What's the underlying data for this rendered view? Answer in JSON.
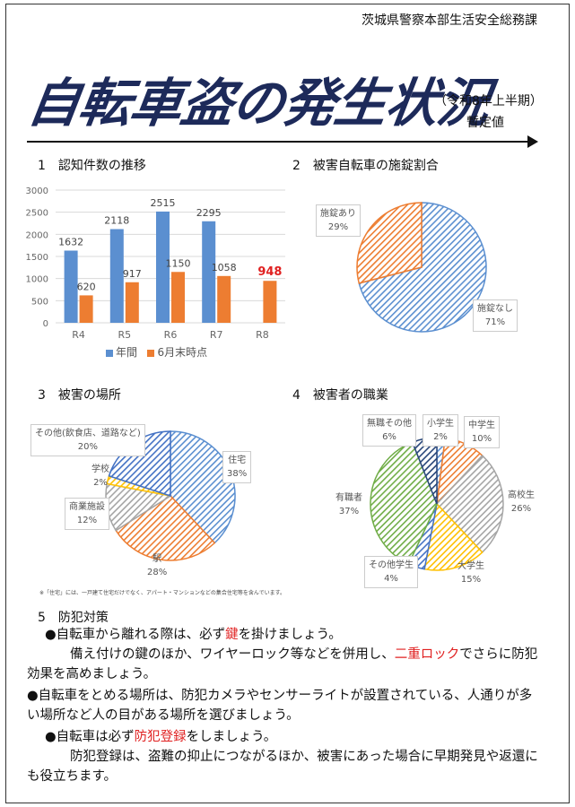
{
  "header": {
    "department": "茨城県警察本部生活安全総務課",
    "title": "自転車盗の発生状況",
    "period": "（令和8年上半期）",
    "provisional": "暫定値"
  },
  "sections": {
    "s1": "1　認知件数の推移",
    "s2": "2　被害自転車の施錠割合",
    "s3": "3　被害の場所",
    "s4": "4　被害者の職業",
    "s5": "5　防犯対策"
  },
  "bar_legend": {
    "annual": "年間",
    "june": "6月末時点"
  },
  "place_note": "※「住宅」には、一戸建て住宅だけでなく、アパート・マンションなどの集合住宅等を含んでいます。",
  "advice": {
    "p1_a": "●自転車から離れる際は、必ず",
    "p1_b": "鍵",
    "p1_c": "を掛けましょう。",
    "p2_a": "備え付けの鍵のほか、ワイヤーロック等などを併用し、",
    "p2_b": "二重ロック",
    "p2_c": "でさらに防犯効果を高めましょう。",
    "p3": "●自転車をとめる場所は、防犯カメラやセンサーライトが設置されている、人通りが多い場所など人の目がある場所を選びましょう。",
    "p4_a": "●自転車は必ず",
    "p4_b": "防犯登録",
    "p4_c": "をしましょう。",
    "p5": "防犯登録は、盗難の抑止につながるほか、被害にあった場合に早期発見や返還にも役立ちます。"
  },
  "colors": {
    "blue": "#5b8fd0",
    "orange": "#ed7d31",
    "highlight_red": "#e02020",
    "title_navy": "#1d2a5a"
  },
  "chart_data": [
    {
      "type": "bar",
      "categories": [
        "R4",
        "R5",
        "R6",
        "R7",
        "R8"
      ],
      "series": [
        {
          "name": "年間",
          "values": [
            1632,
            2118,
            2515,
            2295,
            null
          ],
          "labels": [
            "1632",
            "2118",
            "2515",
            "2295",
            ""
          ]
        },
        {
          "name": "6月末時点",
          "values": [
            620,
            917,
            1150,
            1058,
            948
          ],
          "labels": [
            "620",
            "917",
            "1150",
            "1058",
            "948"
          ]
        }
      ],
      "yticks": [
        "0",
        "500",
        "1000",
        "1500",
        "2000",
        "2500",
        "3000"
      ],
      "ylim": [
        0,
        3000
      ],
      "grid": true,
      "legend": "bottom",
      "highlight_last": true
    },
    {
      "type": "pie",
      "slices": [
        {
          "label": "施錠なし",
          "value": 71,
          "pct": "71%",
          "color": "#5b8fd0"
        },
        {
          "label": "施錠あり",
          "value": 29,
          "pct": "29%",
          "color": "#ed7d31"
        }
      ]
    },
    {
      "type": "pie",
      "slices": [
        {
          "label": "住宅",
          "value": 38,
          "pct": "38%",
          "color": "#5b8fd0"
        },
        {
          "label": "駅",
          "value": 28,
          "pct": "28%",
          "color": "#ed7d31"
        },
        {
          "label": "商業施設",
          "value": 12,
          "pct": "12%",
          "color": "#a5a5a5"
        },
        {
          "label": "学校",
          "value": 2,
          "pct": "2%",
          "color": "#ffc000"
        },
        {
          "label": "その他(飲食店、道路など)",
          "value": 20,
          "pct": "20%",
          "color": "#4472c4"
        }
      ]
    },
    {
      "type": "pie",
      "slices": [
        {
          "label": "小学生",
          "value": 2,
          "pct": "2%",
          "color": "#5b8fd0"
        },
        {
          "label": "中学生",
          "value": 10,
          "pct": "10%",
          "color": "#ed7d31"
        },
        {
          "label": "高校生",
          "value": 26,
          "pct": "26%",
          "color": "#a5a5a5"
        },
        {
          "label": "大学生",
          "value": 15,
          "pct": "15%",
          "color": "#ffc000"
        },
        {
          "label": "その他学生",
          "value": 4,
          "pct": "4%",
          "color": "#4472c4"
        },
        {
          "label": "有職者",
          "value": 37,
          "pct": "37%",
          "color": "#70ad47"
        },
        {
          "label": "無職その他",
          "value": 6,
          "pct": "6%",
          "color": "#264478"
        }
      ]
    }
  ]
}
